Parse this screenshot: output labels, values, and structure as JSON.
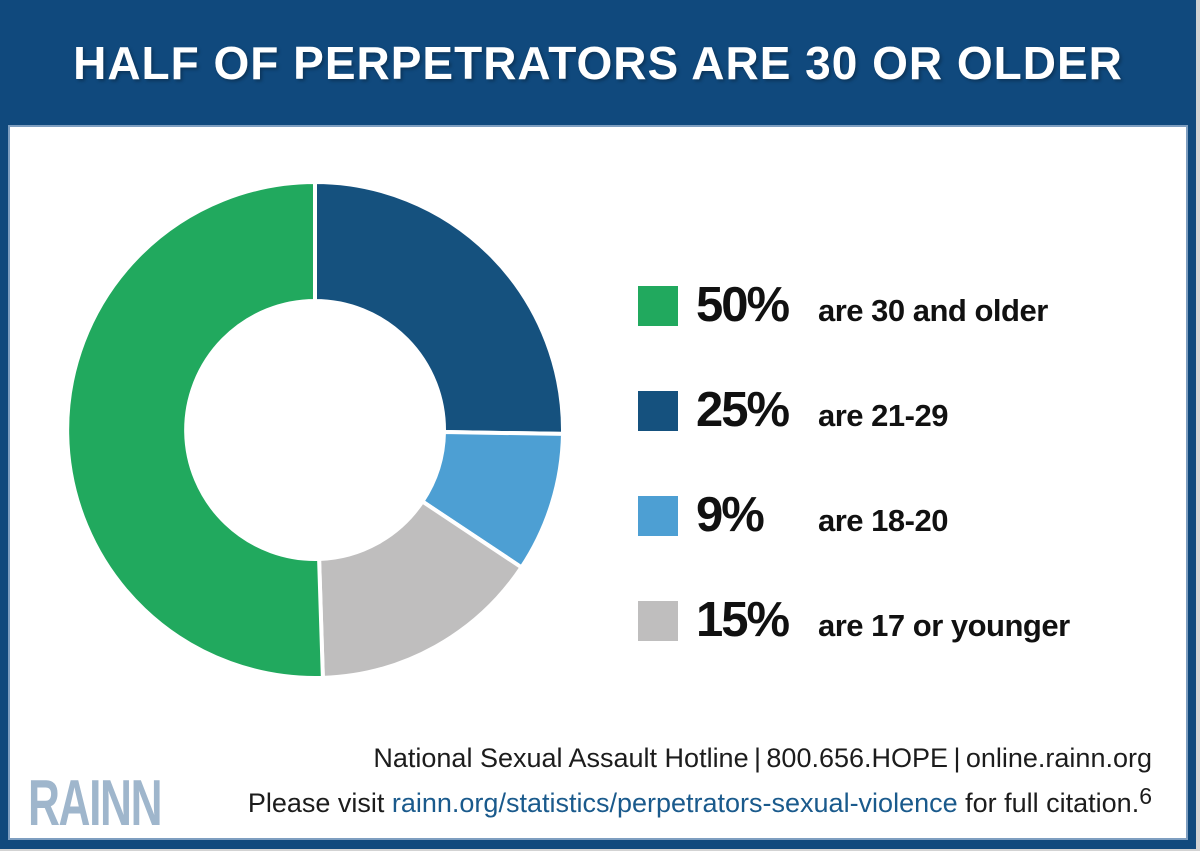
{
  "title": "HALF OF PERPETRATORS ARE 30 OR OLDER",
  "chart_data": {
    "type": "pie",
    "variant": "donut",
    "title": "HALF OF PERPETRATORS ARE 30 OR OLDER",
    "legend_position": "right",
    "hole_ratio": 0.52,
    "start_angle_deg_from_top": 0,
    "direction": "clockwise",
    "segments": [
      {
        "name": "are 30 and older",
        "value": 50,
        "display": "50%",
        "color": "#21A95E"
      },
      {
        "name": "are 21-29",
        "value": 25,
        "display": "25%",
        "color": "#15517E"
      },
      {
        "name": "are 18-20",
        "value": 9,
        "display": "9%",
        "color": "#4D9FD3"
      },
      {
        "name": "are 17 or younger",
        "value": 15,
        "display": "15%",
        "color": "#BFBEBE"
      }
    ],
    "draw_order_clockwise_from_top": [
      1,
      2,
      3,
      0
    ],
    "segment_gap_color": "#ffffff"
  },
  "footer": {
    "hotline_line": "National Sexual Assault Hotline | 800.656.HOPE | online.rainn.org",
    "citation_prefix": "Please visit ",
    "citation_link": "rainn.org/statistics/perpetrators-sexual-violence",
    "citation_suffix": " for full citation.",
    "citation_superscript": "6"
  },
  "logo": {
    "text": "RAINN"
  },
  "colors": {
    "frame_blue": "#10497D",
    "inner_border_light_blue": "#7E9EC0",
    "link_blue": "#1A5A8C",
    "logo_steel_blue": "#9FB6CC",
    "text_black": "#111111",
    "background_white": "#ffffff"
  }
}
